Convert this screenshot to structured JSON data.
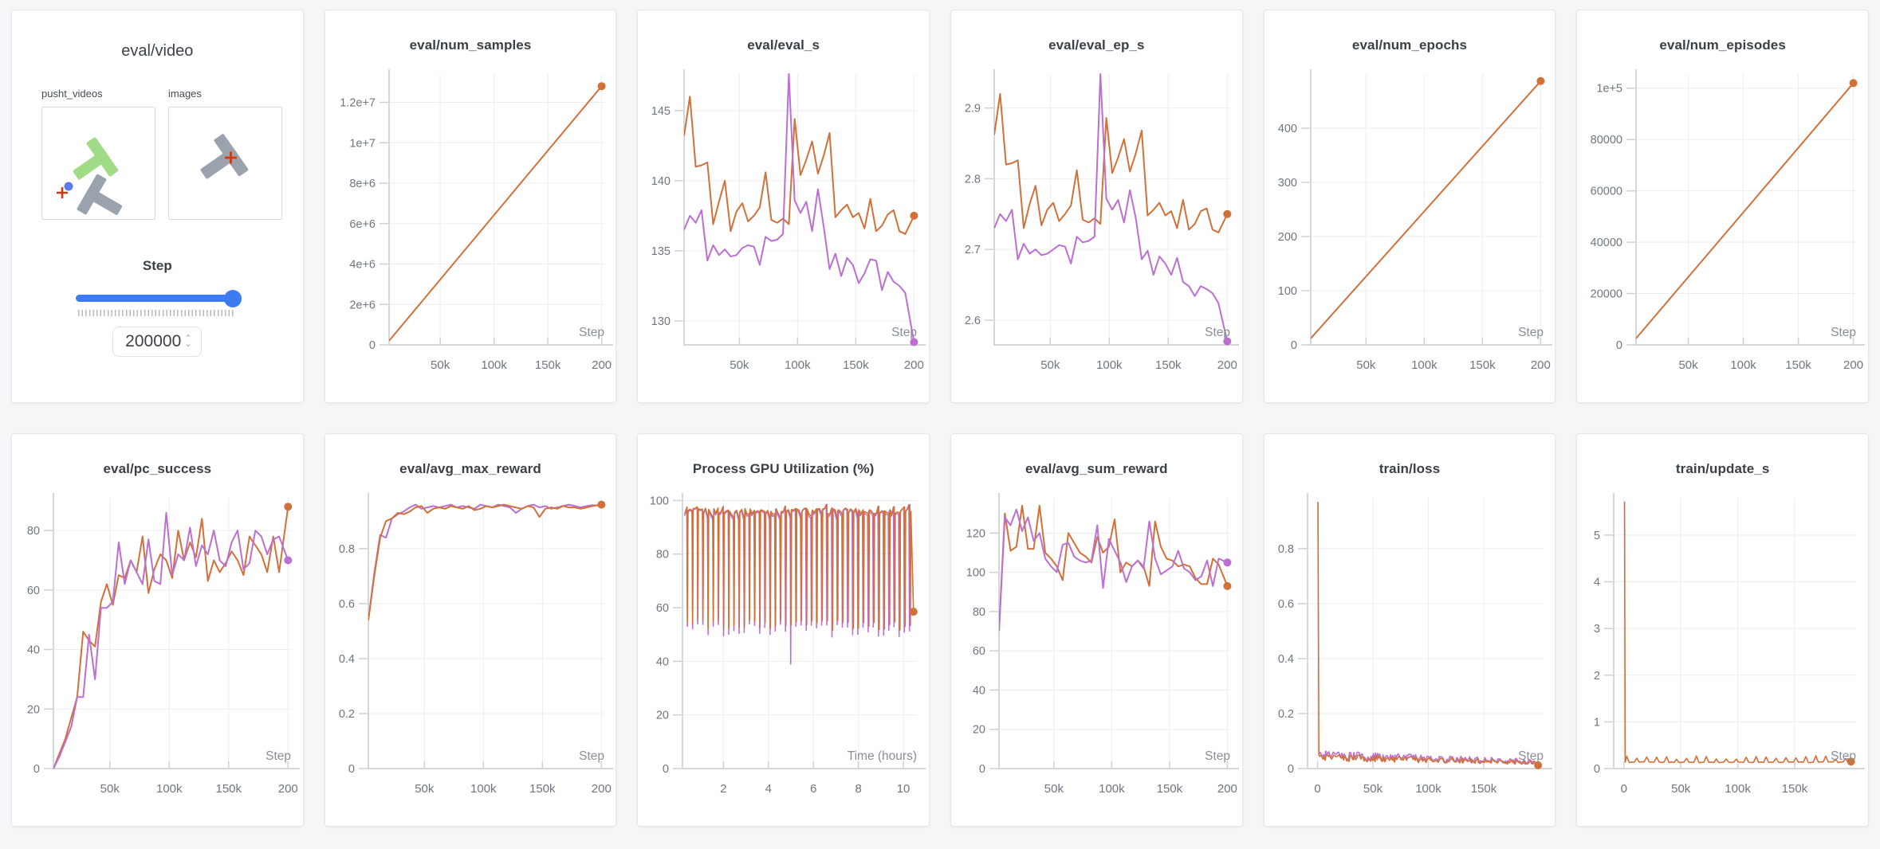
{
  "colors": {
    "orange": "#d2703a",
    "purple": "#bc6fd3",
    "slider_blue": "#3d7bf4"
  },
  "icons": {
    "stepper_up": "⌃",
    "stepper_down": "⌄"
  },
  "video_panel": {
    "title": "eval/video",
    "media": [
      {
        "label": "pusht_videos"
      },
      {
        "label": "images"
      }
    ],
    "step_label": "Step",
    "step_value": "200000"
  },
  "x_eval": [
    2500,
    7500,
    12500,
    17500,
    22500,
    27500,
    32500,
    37500,
    42500,
    47500,
    52500,
    57500,
    62500,
    67500,
    72500,
    77500,
    82500,
    87500,
    92500,
    97500,
    102500,
    107500,
    112500,
    117500,
    122500,
    127500,
    132500,
    137500,
    142500,
    147500,
    152500,
    157500,
    162500,
    167500,
    172500,
    177500,
    182500,
    187500,
    192500,
    200000
  ],
  "charts": [
    {
      "type": "line",
      "title": "eval/num_samples",
      "xlabel": "Step",
      "ml": 80,
      "xlim": [
        2500,
        202500
      ],
      "ylim": [
        0,
        13400000
      ],
      "xticks": [
        50000,
        100000,
        150000,
        200000
      ],
      "xtick_labels": [
        "50k",
        "100k",
        "150k",
        "200"
      ],
      "yticks": [
        0,
        2000000,
        4000000,
        6000000,
        8000000,
        10000000,
        12000000
      ],
      "ytick_labels": [
        "0",
        "2e+6",
        "4e+6",
        "6e+6",
        "8e+6",
        "1e+7",
        "1.2e+7"
      ],
      "series": [
        {
          "color": "orange",
          "dot": true,
          "points": [
            [
              2500,
              200000
            ],
            [
              200000,
              12800000
            ]
          ]
        }
      ]
    },
    {
      "type": "line",
      "title": "eval/eval_s",
      "xlabel": "Step",
      "ml": 58,
      "xlim": [
        2500,
        202500
      ],
      "ylim": [
        128.3,
        147.6
      ],
      "xticks": [
        50000,
        100000,
        150000,
        200000
      ],
      "xtick_labels": [
        "50k",
        "100k",
        "150k",
        "200"
      ],
      "yticks": [
        130,
        135,
        140,
        145
      ],
      "ytick_labels": [
        "130",
        "135",
        "140",
        "145"
      ],
      "series": [
        {
          "color": "orange",
          "dot": true,
          "xref": "x_eval",
          "y": [
            143.2,
            146.0,
            141.0,
            141.1,
            141.3,
            136.9,
            138.5,
            140.0,
            136.4,
            137.8,
            138.4,
            137.1,
            137.5,
            138.1,
            140.6,
            137.2,
            137.0,
            137.3,
            136.9,
            144.4,
            140.4,
            141.5,
            142.8,
            140.5,
            141.8,
            143.4,
            137.4,
            137.9,
            138.3,
            137.4,
            137.7,
            136.6,
            138.7,
            136.4,
            136.8,
            137.6,
            137.9,
            136.4,
            136.2,
            137.5
          ]
        },
        {
          "color": "purple",
          "dot": true,
          "xref": "x_eval",
          "y": [
            136.5,
            137.5,
            137.0,
            137.9,
            134.3,
            135.4,
            134.7,
            135.1,
            134.6,
            134.7,
            135.2,
            135.4,
            135.3,
            134.0,
            136.0,
            135.7,
            135.8,
            136.2,
            147.6,
            138.6,
            137.7,
            138.5,
            136.4,
            139.4,
            136.7,
            133.7,
            134.8,
            133.2,
            134.5,
            134.0,
            132.7,
            133.4,
            134.4,
            134.3,
            132.2,
            133.5,
            132.8,
            132.5,
            132.0,
            128.5
          ]
        }
      ]
    },
    {
      "type": "line",
      "title": "eval/eval_ep_s",
      "xlabel": "Step",
      "ml": 54,
      "xlim": [
        2500,
        202500
      ],
      "ylim": [
        2.565,
        2.948
      ],
      "xticks": [
        50000,
        100000,
        150000,
        200000
      ],
      "xtick_labels": [
        "50k",
        "100k",
        "150k",
        "200"
      ],
      "yticks": [
        2.6,
        2.7,
        2.8,
        2.9
      ],
      "ytick_labels": [
        "2.6",
        "2.7",
        "2.8",
        "2.9"
      ],
      "series": [
        {
          "color": "orange",
          "dot": true,
          "xref": "x_eval",
          "y": [
            2.862,
            2.92,
            2.82,
            2.822,
            2.826,
            2.73,
            2.764,
            2.79,
            2.734,
            2.756,
            2.766,
            2.74,
            2.75,
            2.762,
            2.812,
            2.742,
            2.738,
            2.744,
            2.736,
            2.886,
            2.808,
            2.83,
            2.856,
            2.81,
            2.836,
            2.868,
            2.748,
            2.756,
            2.766,
            2.748,
            2.754,
            2.73,
            2.77,
            2.728,
            2.736,
            2.754,
            2.758,
            2.728,
            2.724,
            2.75
          ]
        },
        {
          "color": "purple",
          "dot": true,
          "xref": "x_eval",
          "y": [
            2.73,
            2.75,
            2.74,
            2.756,
            2.686,
            2.708,
            2.694,
            2.7,
            2.692,
            2.694,
            2.7,
            2.706,
            2.704,
            2.68,
            2.718,
            2.71,
            2.712,
            2.718,
            2.948,
            2.772,
            2.756,
            2.77,
            2.738,
            2.784,
            2.744,
            2.686,
            2.698,
            2.664,
            2.69,
            2.68,
            2.664,
            2.688,
            2.654,
            2.648,
            2.634,
            2.648,
            2.644,
            2.638,
            2.624,
            2.57
          ]
        }
      ]
    },
    {
      "type": "line",
      "title": "eval/num_epochs",
      "xlabel": "Step",
      "ml": 58,
      "xlim": [
        2500,
        202500
      ],
      "ylim": [
        0,
        500
      ],
      "xticks": [
        50000,
        100000,
        150000,
        200000
      ],
      "xtick_labels": [
        "50k",
        "100k",
        "150k",
        "200"
      ],
      "yticks": [
        0,
        100,
        200,
        300,
        400
      ],
      "ytick_labels": [
        "0",
        "100",
        "200",
        "300",
        "400"
      ],
      "series": [
        {
          "color": "orange",
          "dot": true,
          "points": [
            [
              2500,
              12
            ],
            [
              200000,
              487
            ]
          ]
        }
      ]
    },
    {
      "type": "line",
      "title": "eval/num_episodes",
      "xlabel": "Step",
      "ml": 74,
      "xlim": [
        2500,
        202500
      ],
      "ylim": [
        0,
        105500
      ],
      "xticks": [
        50000,
        100000,
        150000,
        200000
      ],
      "xtick_labels": [
        "50k",
        "100k",
        "150k",
        "200"
      ],
      "yticks": [
        0,
        20000,
        40000,
        60000,
        80000,
        100000
      ],
      "ytick_labels": [
        "0",
        "20000",
        "40000",
        "60000",
        "80000",
        "1e+5"
      ],
      "series": [
        {
          "color": "orange",
          "dot": true,
          "points": [
            [
              2500,
              2500
            ],
            [
              200000,
              102000
            ]
          ]
        }
      ]
    },
    {
      "type": "line",
      "title": "eval/pc_success",
      "xlabel": "Step",
      "ml": 52,
      "xlim": [
        2500,
        202500
      ],
      "ylim": [
        0,
        91
      ],
      "xticks": [
        50000,
        100000,
        150000,
        200000
      ],
      "xtick_labels": [
        "50k",
        "100k",
        "150k",
        "200"
      ],
      "yticks": [
        0,
        20,
        40,
        60,
        80
      ],
      "ytick_labels": [
        "0",
        "20",
        "40",
        "60",
        "80"
      ],
      "series": [
        {
          "color": "orange",
          "dot": true,
          "xref": "x_eval",
          "y": [
            0,
            5,
            10,
            17,
            24,
            46,
            43,
            41,
            56,
            62,
            55,
            65,
            64,
            70,
            66,
            78,
            59,
            67,
            72,
            70,
            64,
            80,
            70,
            76,
            71,
            84,
            63,
            70,
            66,
            69,
            73,
            70,
            65,
            78,
            75,
            72,
            66,
            78,
            66,
            88
          ]
        },
        {
          "color": "purple",
          "dot": true,
          "xref": "x_eval",
          "y": [
            0,
            4,
            9,
            14,
            24,
            24,
            45,
            30,
            54,
            54,
            56,
            76,
            62,
            70,
            66,
            62,
            77,
            63,
            62,
            86,
            65,
            72,
            70,
            81,
            68,
            75,
            72,
            80,
            70,
            68,
            76,
            80,
            67,
            69,
            80,
            78,
            72,
            77,
            78,
            70
          ]
        }
      ]
    },
    {
      "type": "line",
      "title": "eval/avg_max_reward",
      "xlabel": "Step",
      "ml": 54,
      "xlim": [
        2500,
        202500
      ],
      "ylim": [
        0,
        0.985
      ],
      "xticks": [
        50000,
        100000,
        150000,
        200000
      ],
      "xtick_labels": [
        "50k",
        "100k",
        "150k",
        "200"
      ],
      "yticks": [
        0,
        0.2,
        0.4,
        0.6,
        0.8
      ],
      "ytick_labels": [
        "0",
        "0.2",
        "0.4",
        "0.6",
        "0.8"
      ],
      "series": [
        {
          "color": "purple",
          "dot": false,
          "xref": "x_eval",
          "y": [
            0.54,
            0.71,
            0.85,
            0.84,
            0.91,
            0.925,
            0.935,
            0.95,
            0.96,
            0.945,
            0.95,
            0.955,
            0.95,
            0.955,
            0.96,
            0.95,
            0.955,
            0.95,
            0.945,
            0.96,
            0.955,
            0.95,
            0.96,
            0.955,
            0.95,
            0.93,
            0.945,
            0.955,
            0.96,
            0.95,
            0.955,
            0.945,
            0.95,
            0.955,
            0.96,
            0.955,
            0.95,
            0.955,
            0.958,
            0.956
          ]
        },
        {
          "color": "orange",
          "dot": true,
          "xref": "x_eval",
          "y": [
            0.54,
            0.7,
            0.84,
            0.9,
            0.91,
            0.93,
            0.925,
            0.935,
            0.95,
            0.955,
            0.93,
            0.945,
            0.95,
            0.945,
            0.955,
            0.95,
            0.945,
            0.955,
            0.94,
            0.945,
            0.955,
            0.95,
            0.955,
            0.96,
            0.955,
            0.95,
            0.945,
            0.955,
            0.95,
            0.915,
            0.945,
            0.95,
            0.945,
            0.955,
            0.95,
            0.95,
            0.945,
            0.95,
            0.955,
            0.96
          ]
        }
      ]
    },
    {
      "type": "line",
      "title": "Process GPU Utilization (%)",
      "xlabel": "Time (hours)",
      "ml": 56,
      "xlim": [
        0.18,
        10.6
      ],
      "ylim": [
        0,
        101
      ],
      "xticks": [
        2,
        4,
        6,
        8,
        10
      ],
      "xtick_labels": [
        "2",
        "4",
        "6",
        "8",
        "10"
      ],
      "yticks": [
        0,
        20,
        40,
        60,
        80,
        100
      ],
      "ytick_labels": [
        "0",
        "20",
        "40",
        "60",
        "80",
        "100"
      ],
      "series": [
        {
          "color": "purple",
          "w": 1.6,
          "dot": false,
          "gen": {
            "type": "saw",
            "x0": 0.28,
            "x1": 10.38,
            "n": 44,
            "hi": 95.5,
            "hiJ": 3,
            "lo": 51.5,
            "loJ": 2.5,
            "dip": [
              4.9,
              39
            ]
          }
        },
        {
          "color": "orange",
          "w": 1.6,
          "dot": true,
          "gen": {
            "type": "saw",
            "x0": 0.28,
            "x1": 10.42,
            "n": 44,
            "hi": 96,
            "hiJ": 2.5,
            "lo": 53.5,
            "loJ": 2
          },
          "post": [
            [
              10.45,
              58.5
            ]
          ]
        }
      ]
    },
    {
      "type": "line",
      "title": "eval/avg_sum_reward",
      "xlabel": "Step",
      "ml": 60,
      "xlim": [
        2500,
        202500
      ],
      "ylim": [
        0,
        138
      ],
      "xticks": [
        50000,
        100000,
        150000,
        200000
      ],
      "xtick_labels": [
        "50k",
        "100k",
        "150k",
        "200"
      ],
      "yticks": [
        0,
        20,
        40,
        60,
        80,
        100,
        120
      ],
      "ytick_labels": [
        "0",
        "20",
        "40",
        "60",
        "80",
        "100",
        "120"
      ],
      "series": [
        {
          "color": "orange",
          "dot": true,
          "xref": "x_eval",
          "y": [
            70,
            130,
            111,
            113,
            134,
            112,
            112,
            134,
            110,
            107,
            103,
            96,
            120,
            115,
            110,
            108,
            105,
            118,
            110,
            113,
            127,
            100,
            105,
            103,
            106,
            103,
            93,
            126,
            113,
            107,
            106,
            103,
            104,
            103,
            97,
            94,
            94,
            107,
            104,
            93
          ]
        },
        {
          "color": "purple",
          "dot": true,
          "xref": "x_eval",
          "y": [
            70,
            128,
            124,
            132,
            121,
            128,
            116,
            120,
            107,
            103,
            100,
            114,
            115,
            108,
            106,
            105,
            106,
            124,
            92,
            117,
            111,
            105,
            95,
            103,
            106,
            102,
            126,
            107,
            99,
            101,
            103,
            111,
            102,
            100,
            96,
            98,
            106,
            93,
            107,
            105
          ]
        }
      ]
    },
    {
      "type": "line",
      "title": "train/loss",
      "xlabel": "Step",
      "ml": 54,
      "xlim": [
        -9000,
        204000
      ],
      "ylim": [
        0,
        0.985
      ],
      "xticks": [
        0,
        50000,
        100000,
        150000
      ],
      "xtick_labels": [
        "0",
        "50k",
        "100k",
        "150k"
      ],
      "yticks": [
        0,
        0.2,
        0.4,
        0.6,
        0.8
      ],
      "ytick_labels": [
        "0",
        "0.2",
        "0.4",
        "0.6",
        "0.8"
      ],
      "series": [
        {
          "color": "purple",
          "w": 1.6,
          "dot": false,
          "gen": {
            "type": "noise",
            "x0": 1500,
            "x1": 196000,
            "n": 200,
            "base": 0.032,
            "amp": 0.034,
            "decay": 0.5
          }
        },
        {
          "color": "orange",
          "w": 1.6,
          "dot": true,
          "pre": [
            [
              400,
              0.97
            ],
            [
              1200,
              0.05
            ]
          ],
          "gen": {
            "type": "noise",
            "x0": 2000,
            "x1": 197000,
            "n": 200,
            "base": 0.027,
            "amp": 0.027,
            "decay": 0.45
          },
          "post": [
            [
              199000,
              0.012
            ]
          ]
        }
      ]
    },
    {
      "type": "line",
      "title": "train/update_s",
      "xlabel": "Step",
      "ml": 46,
      "xlim": [
        -9000,
        204000
      ],
      "ylim": [
        0,
        5.8
      ],
      "xticks": [
        0,
        50000,
        100000,
        150000
      ],
      "xtick_labels": [
        "0",
        "50k",
        "100k",
        "150k"
      ],
      "yticks": [
        0,
        1,
        2,
        3,
        4,
        5
      ],
      "ytick_labels": [
        "0",
        "1",
        "2",
        "3",
        "4",
        "5"
      ],
      "series": [
        {
          "color": "orange",
          "w": 1.6,
          "dot": true,
          "pre": [
            [
              500,
              5.72
            ],
            [
              1100,
              0.14
            ]
          ],
          "gen": {
            "type": "spikes",
            "x0": 2500,
            "x1": 197000,
            "n": 90,
            "base": 0.135,
            "amp": 0.14,
            "every": 4
          },
          "post": [
            [
              199500,
              0.15
            ]
          ]
        }
      ]
    }
  ]
}
